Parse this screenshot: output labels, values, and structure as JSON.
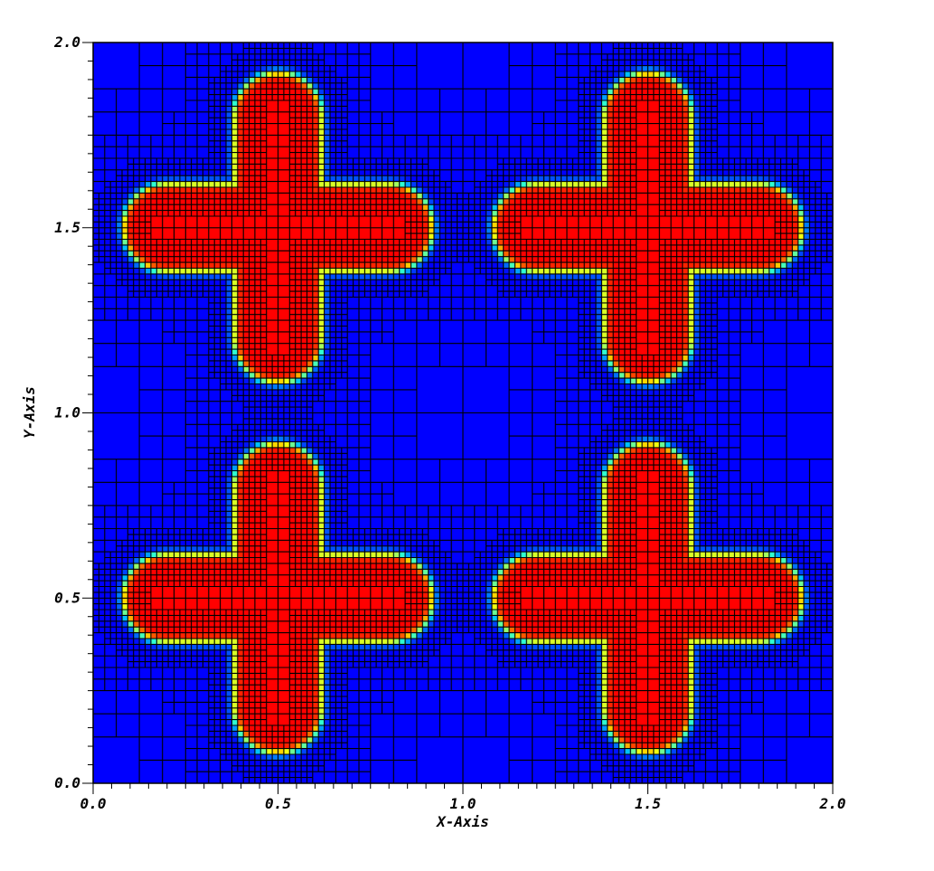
{
  "chart_data": {
    "type": "heatmap",
    "title": "",
    "xlabel": "X-Axis",
    "ylabel": "Y-Axis",
    "xlim": [
      0.0,
      2.0
    ],
    "ylim": [
      0.0,
      2.0
    ],
    "x_ticks": [
      "0.0",
      "0.5",
      "1.0",
      "1.5",
      "2.0"
    ],
    "y_ticks": [
      "0.0",
      "0.5",
      "1.0",
      "1.5",
      "2.0"
    ],
    "x_tick_values": [
      0.0,
      0.5,
      1.0,
      1.5,
      2.0
    ],
    "y_tick_values": [
      0.0,
      0.5,
      1.0,
      1.5,
      2.0
    ],
    "minor_tick_step": 0.05,
    "colormap": [
      "#0000ff",
      "#00ffff",
      "#ffff00",
      "#ff0000"
    ],
    "background_color": "#0000ff",
    "mesh_line_color": "#000000",
    "shapes": [
      {
        "name": "cross",
        "center": [
          0.5,
          1.5
        ],
        "arm_half_length": 0.42,
        "arm_half_width": 0.12
      },
      {
        "name": "cross",
        "center": [
          1.5,
          1.5
        ],
        "arm_half_length": 0.42,
        "arm_half_width": 0.12
      },
      {
        "name": "cross",
        "center": [
          0.5,
          0.5
        ],
        "arm_half_length": 0.42,
        "arm_half_width": 0.12
      },
      {
        "name": "cross",
        "center": [
          1.5,
          0.5
        ],
        "arm_half_length": 0.42,
        "arm_half_width": 0.12
      }
    ],
    "mesh": "adaptive quadtree refined near interfaces"
  }
}
